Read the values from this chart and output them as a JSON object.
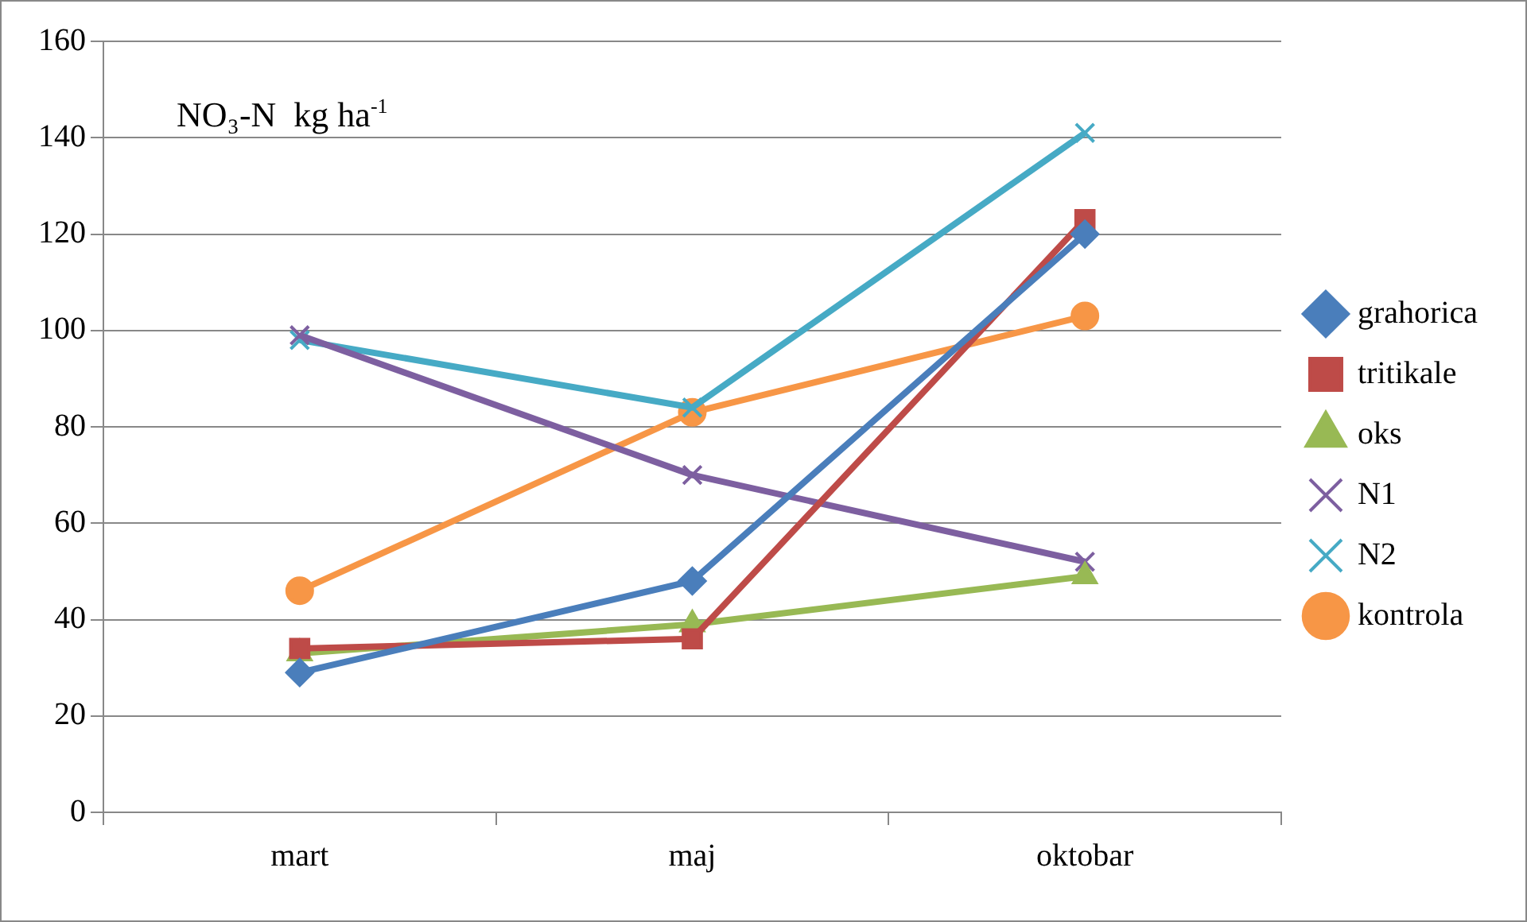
{
  "chart_data": {
    "type": "line",
    "categories": [
      "mart",
      "maj",
      "oktobar"
    ],
    "series": [
      {
        "name": "grahorica",
        "color": "#4a7ebb",
        "marker": "diamond",
        "values": [
          29,
          48,
          120
        ]
      },
      {
        "name": "tritikale",
        "color": "#be4b48",
        "marker": "square",
        "values": [
          34,
          36,
          123
        ]
      },
      {
        "name": "oks",
        "color": "#98b954",
        "marker": "triangle",
        "values": [
          33,
          39,
          49
        ]
      },
      {
        "name": "N1",
        "color": "#7d5fa0",
        "marker": "cross",
        "values": [
          99,
          70,
          52
        ]
      },
      {
        "name": "N2",
        "color": "#46aac5",
        "marker": "cross",
        "values": [
          98,
          84,
          141
        ]
      },
      {
        "name": "kontrola",
        "color": "#f79646",
        "marker": "circle",
        "values": [
          46,
          83,
          103
        ]
      }
    ],
    "ylim": [
      0,
      160
    ],
    "yticks": [
      0,
      20,
      40,
      60,
      80,
      100,
      120,
      140,
      160
    ],
    "grid": "y",
    "legend": "right",
    "line_style": "solid",
    "annotations": [
      "NO₃-N  kg ha$^{-1}$"
    ]
  }
}
